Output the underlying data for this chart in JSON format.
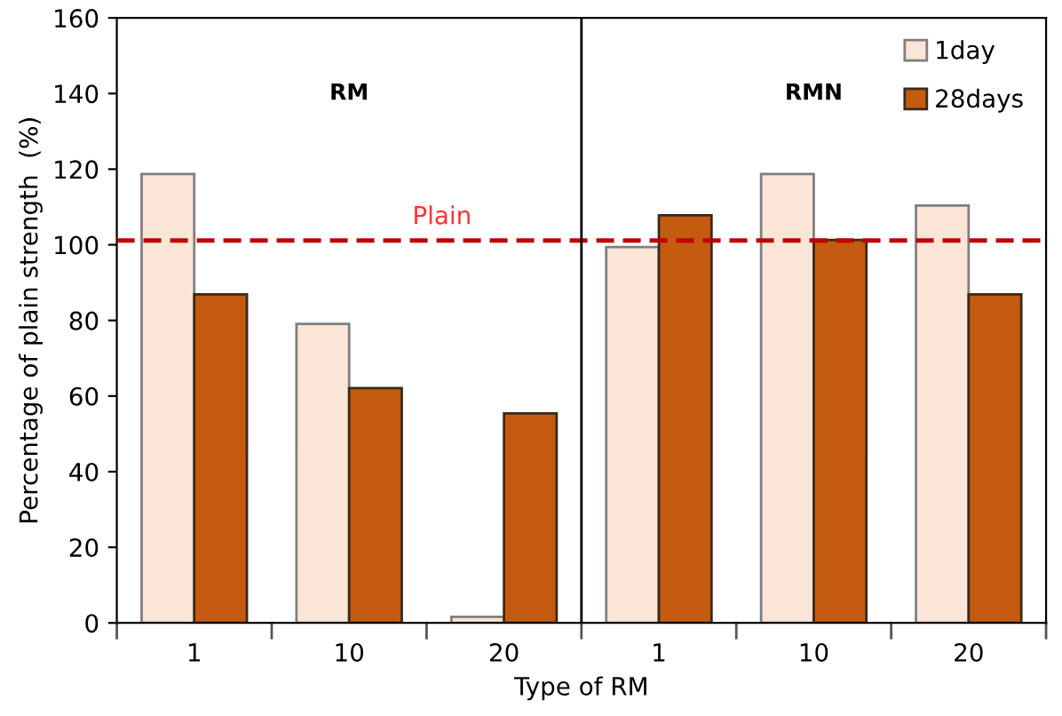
{
  "chart_data": {
    "type": "bar",
    "xlabel": "Type of RM",
    "ylabel": "Percentage of plain strength  (%)",
    "categories": [
      "1",
      "10",
      "20",
      "1",
      "10",
      "20"
    ],
    "series": [
      {
        "name": "1day",
        "color": "#fbe5d6",
        "values": [
          118.7,
          79.1,
          1.6,
          99.4,
          118.7,
          110.4
        ]
      },
      {
        "name": "28days",
        "color": "#c55a11",
        "values": [
          86.9,
          62.1,
          55.4,
          107.8,
          101.3,
          86.9
        ]
      }
    ],
    "ylim": [
      0,
      160
    ],
    "yticks": [
      0,
      20,
      40,
      60,
      80,
      100,
      120,
      140,
      160
    ],
    "ref_lines": [
      {
        "axis": "y",
        "value": 101.1,
        "label": "Plain",
        "color": "#c00000",
        "line_style": "dashed"
      }
    ],
    "annotations": [
      "RM",
      "RMN"
    ],
    "grid": false,
    "legend": "top right"
  }
}
